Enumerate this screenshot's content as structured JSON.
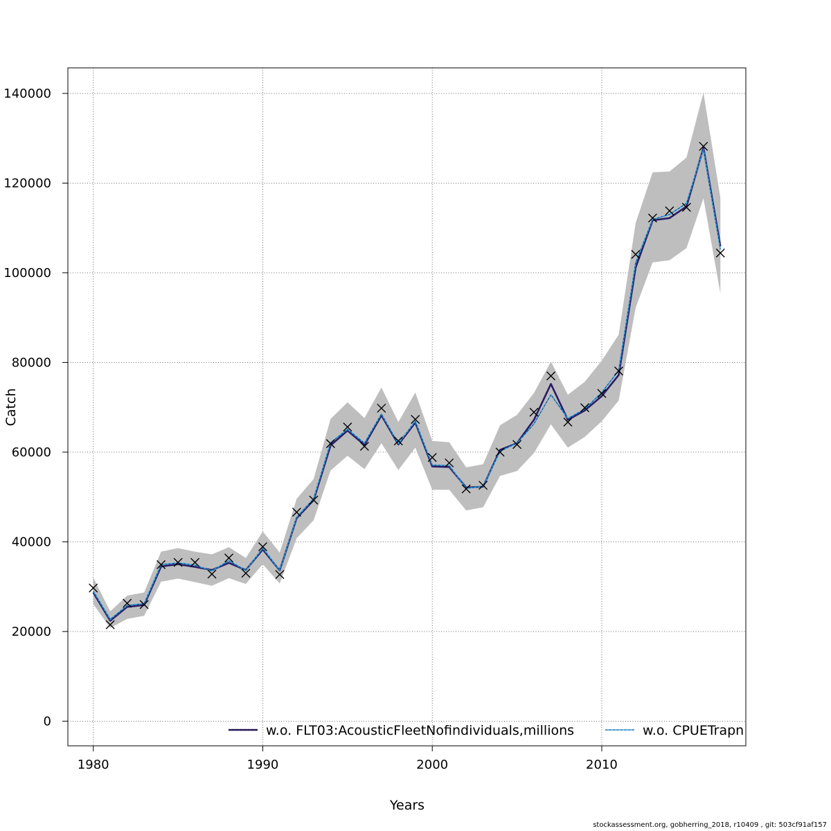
{
  "chart_data": {
    "type": "line",
    "xlabel": "Years",
    "ylabel": "Catch",
    "xlim": [
      1978.5,
      2018.5
    ],
    "ylim": [
      -5500,
      145700
    ],
    "xticks": [
      1980,
      1990,
      2000,
      2010
    ],
    "yticks": [
      0,
      20000,
      40000,
      60000,
      80000,
      100000,
      120000,
      140000
    ],
    "grid": true,
    "legend_position": "bottom-right",
    "x": [
      1980,
      1981,
      1982,
      1983,
      1984,
      1985,
      1986,
      1987,
      1988,
      1989,
      1990,
      1991,
      1992,
      1993,
      1994,
      1995,
      1996,
      1997,
      1998,
      1999,
      2000,
      2001,
      2002,
      2003,
      2004,
      2005,
      2006,
      2007,
      2008,
      2009,
      2010,
      2011,
      2012,
      2013,
      2014,
      2015,
      2016,
      2017
    ],
    "observed": {
      "marker": "x",
      "values": [
        29700,
        21500,
        26300,
        26000,
        34900,
        35400,
        35400,
        32800,
        36400,
        33000,
        38900,
        32700,
        46600,
        49300,
        61900,
        65600,
        61300,
        69800,
        62500,
        67300,
        58800,
        57600,
        51800,
        52600,
        60000,
        61700,
        68900,
        77000,
        66700,
        69900,
        73100,
        78100,
        104100,
        112200,
        113800,
        114600,
        128200,
        104400
      ]
    },
    "band": {
      "color": "#bebebe",
      "upper": [
        32000,
        24500,
        28000,
        28700,
        37800,
        38600,
        37800,
        37200,
        38800,
        36400,
        42300,
        37600,
        49600,
        54000,
        67400,
        71100,
        67600,
        74400,
        66700,
        73300,
        62500,
        62200,
        56600,
        57300,
        66000,
        68300,
        73200,
        80200,
        72800,
        75700,
        80400,
        86200,
        111100,
        122400,
        122600,
        125700,
        140200,
        116700
      ],
      "lower": [
        26100,
        20800,
        22800,
        23500,
        31100,
        31800,
        31000,
        30200,
        31900,
        30600,
        35000,
        30700,
        40800,
        44800,
        55900,
        59200,
        56200,
        62000,
        56000,
        61000,
        51600,
        51600,
        47000,
        47700,
        54700,
        55800,
        59800,
        66200,
        61000,
        63400,
        66900,
        71500,
        92200,
        102300,
        102800,
        105500,
        116600,
        95400
      ]
    },
    "series": [
      {
        "name": "w.o. FLT03:AcousticFleetNofindividuals,millions",
        "color": "#2a1a66",
        "dash": "none",
        "width": 2.6,
        "values": [
          28700,
          22400,
          25500,
          25900,
          34500,
          35000,
          34400,
          33700,
          35300,
          33700,
          38300,
          33600,
          45300,
          49300,
          61500,
          64800,
          61600,
          68200,
          61700,
          66600,
          56800,
          56700,
          52100,
          52300,
          60500,
          62000,
          67200,
          75200,
          67200,
          69300,
          72500,
          77200,
          101200,
          111700,
          112200,
          114800,
          127900,
          105900
        ]
      },
      {
        "name": "w.o. CPUETrapn",
        "color": "#28a8ee",
        "dash": "3,2.5",
        "width": 1.6,
        "values": [
          29000,
          22700,
          25800,
          26200,
          34900,
          35300,
          34800,
          33500,
          35800,
          33600,
          38600,
          33600,
          45500,
          49600,
          62100,
          65100,
          62000,
          68500,
          61900,
          66900,
          57100,
          57000,
          51900,
          52400,
          60200,
          62000,
          66300,
          72800,
          67500,
          69600,
          73300,
          78200,
          102200,
          111900,
          113000,
          115500,
          127600,
          105200
        ]
      }
    ]
  },
  "footer_text": "stockassessment.org, gobherring_2018, r10409 , git: 503cf91af157"
}
